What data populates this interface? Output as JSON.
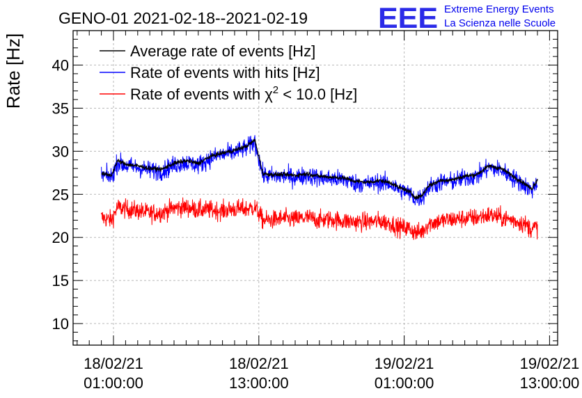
{
  "chart_data": {
    "type": "line",
    "title": "GENO-01 2021-02-18--2021-02-19",
    "ylabel": "Rate [Hz]",
    "xlabel": "",
    "x_axis": "time",
    "ylim": [
      7.5,
      44
    ],
    "xlim": [
      "2021-02-17 21:40",
      "2021-02-19 13:40"
    ],
    "grid": true,
    "legend_position": "top-left",
    "y_ticks": [
      10,
      15,
      20,
      25,
      30,
      35,
      40
    ],
    "x_ticks": [
      {
        "date": "18/02/21",
        "time": "01:00:00",
        "at": "2021-02-18 01:00"
      },
      {
        "date": "18/02/21",
        "time": "13:00:00",
        "at": "2021-02-18 13:00"
      },
      {
        "date": "19/02/21",
        "time": "01:00:00",
        "at": "2021-02-19 01:00"
      },
      {
        "date": "19/02/21",
        "time": "13:00:00",
        "at": "2021-02-19 13:00"
      }
    ],
    "series": [
      {
        "name": "Average rate of events [Hz]",
        "color": "#000000",
        "x": [
          "2021-02-18 00:00",
          "2021-02-18 00:50",
          "2021-02-18 01:20",
          "2021-02-18 02:00",
          "2021-02-18 03:00",
          "2021-02-18 04:00",
          "2021-02-18 05:00",
          "2021-02-18 06:00",
          "2021-02-18 07:00",
          "2021-02-18 08:00",
          "2021-02-18 09:00",
          "2021-02-18 10:00",
          "2021-02-18 11:00",
          "2021-02-18 12:00",
          "2021-02-18 12:40",
          "2021-02-18 13:00",
          "2021-02-18 13:20",
          "2021-02-18 14:00",
          "2021-02-18 15:00",
          "2021-02-18 16:00",
          "2021-02-18 17:00",
          "2021-02-18 18:00",
          "2021-02-18 19:00",
          "2021-02-18 20:00",
          "2021-02-18 21:00",
          "2021-02-18 22:00",
          "2021-02-18 23:00",
          "2021-02-19 00:00",
          "2021-02-19 00:30",
          "2021-02-19 01:00",
          "2021-02-19 01:30",
          "2021-02-19 02:00",
          "2021-02-19 02:30",
          "2021-02-19 03:00",
          "2021-02-19 04:00",
          "2021-02-19 05:00",
          "2021-02-19 06:00",
          "2021-02-19 07:00",
          "2021-02-19 08:00",
          "2021-02-19 09:00",
          "2021-02-19 10:00",
          "2021-02-19 11:00",
          "2021-02-19 11:30",
          "2021-02-19 12:00"
        ],
        "y": [
          27.4,
          27.2,
          28.9,
          28.5,
          28.3,
          28.0,
          27.9,
          28.6,
          28.9,
          28.6,
          29.4,
          29.8,
          30.1,
          30.6,
          31.3,
          29.4,
          27.4,
          27.3,
          27.3,
          27.2,
          27.4,
          27.1,
          27.0,
          26.9,
          26.5,
          26.4,
          26.6,
          26.3,
          25.8,
          25.6,
          25.2,
          24.6,
          24.9,
          26.0,
          26.6,
          26.7,
          27.1,
          27.3,
          28.3,
          28.0,
          27.1,
          26.2,
          25.6,
          26.7
        ]
      },
      {
        "name": "Rate of events with hits [Hz]",
        "color": "#0000ff",
        "x": [
          "2021-02-18 00:00",
          "2021-02-18 00:50",
          "2021-02-18 01:20",
          "2021-02-18 02:00",
          "2021-02-18 03:00",
          "2021-02-18 04:00",
          "2021-02-18 05:00",
          "2021-02-18 06:00",
          "2021-02-18 07:00",
          "2021-02-18 08:00",
          "2021-02-18 09:00",
          "2021-02-18 10:00",
          "2021-02-18 11:00",
          "2021-02-18 12:00",
          "2021-02-18 12:40",
          "2021-02-18 13:00",
          "2021-02-18 13:20",
          "2021-02-18 14:00",
          "2021-02-18 15:00",
          "2021-02-18 16:00",
          "2021-02-18 17:00",
          "2021-02-18 18:00",
          "2021-02-18 19:00",
          "2021-02-18 20:00",
          "2021-02-18 21:00",
          "2021-02-18 22:00",
          "2021-02-18 23:00",
          "2021-02-19 00:00",
          "2021-02-19 00:30",
          "2021-02-19 01:00",
          "2021-02-19 01:30",
          "2021-02-19 02:00",
          "2021-02-19 02:30",
          "2021-02-19 03:00",
          "2021-02-19 04:00",
          "2021-02-19 05:00",
          "2021-02-19 06:00",
          "2021-02-19 07:00",
          "2021-02-19 08:00",
          "2021-02-19 09:00",
          "2021-02-19 10:00",
          "2021-02-19 11:00",
          "2021-02-19 11:30",
          "2021-02-19 12:00"
        ],
        "y": [
          27.2,
          27.0,
          28.7,
          28.3,
          28.1,
          27.8,
          27.7,
          28.4,
          28.7,
          28.4,
          29.2,
          29.6,
          29.9,
          30.4,
          31.1,
          29.2,
          27.2,
          27.1,
          27.1,
          27.0,
          27.2,
          26.9,
          26.8,
          26.7,
          26.3,
          26.2,
          26.4,
          26.1,
          25.6,
          25.4,
          25.0,
          24.4,
          24.7,
          25.8,
          26.4,
          26.5,
          26.9,
          27.1,
          28.1,
          27.8,
          26.9,
          26.0,
          25.4,
          26.5
        ]
      },
      {
        "name": "Rate of events with χ2 < 10.0 [Hz]",
        "color": "#ff0000",
        "x": [
          "2021-02-18 00:00",
          "2021-02-18 00:50",
          "2021-02-18 01:20",
          "2021-02-18 02:00",
          "2021-02-18 03:00",
          "2021-02-18 04:00",
          "2021-02-18 05:00",
          "2021-02-18 06:00",
          "2021-02-18 07:00",
          "2021-02-18 08:00",
          "2021-02-18 09:00",
          "2021-02-18 10:00",
          "2021-02-18 11:00",
          "2021-02-18 12:00",
          "2021-02-18 12:40",
          "2021-02-18 13:00",
          "2021-02-18 13:20",
          "2021-02-18 14:00",
          "2021-02-18 15:00",
          "2021-02-18 16:00",
          "2021-02-18 17:00",
          "2021-02-18 18:00",
          "2021-02-18 19:00",
          "2021-02-18 20:00",
          "2021-02-18 21:00",
          "2021-02-18 22:00",
          "2021-02-18 23:00",
          "2021-02-19 00:00",
          "2021-02-19 00:30",
          "2021-02-19 01:00",
          "2021-02-19 01:30",
          "2021-02-19 02:00",
          "2021-02-19 02:30",
          "2021-02-19 03:00",
          "2021-02-19 04:00",
          "2021-02-19 05:00",
          "2021-02-19 06:00",
          "2021-02-19 07:00",
          "2021-02-19 08:00",
          "2021-02-19 09:00",
          "2021-02-19 10:00",
          "2021-02-19 11:00",
          "2021-02-19 11:30",
          "2021-02-19 12:00"
        ],
        "y": [
          22.3,
          22.0,
          23.5,
          23.3,
          23.1,
          22.8,
          22.9,
          23.4,
          23.5,
          23.2,
          23.2,
          23.1,
          23.3,
          23.3,
          23.5,
          22.8,
          22.0,
          22.0,
          22.2,
          22.1,
          22.3,
          22.0,
          22.1,
          21.9,
          21.8,
          21.8,
          21.9,
          21.6,
          21.2,
          21.1,
          21.0,
          20.5,
          20.7,
          21.6,
          21.9,
          22.1,
          22.2,
          22.3,
          22.6,
          22.3,
          22.0,
          21.5,
          21.0,
          21.2
        ]
      }
    ]
  },
  "logo": {
    "text": "EEE",
    "line1": "Extreme Energy Events",
    "line2": "La Scienza nelle Scuole",
    "color": "#0000ee"
  }
}
